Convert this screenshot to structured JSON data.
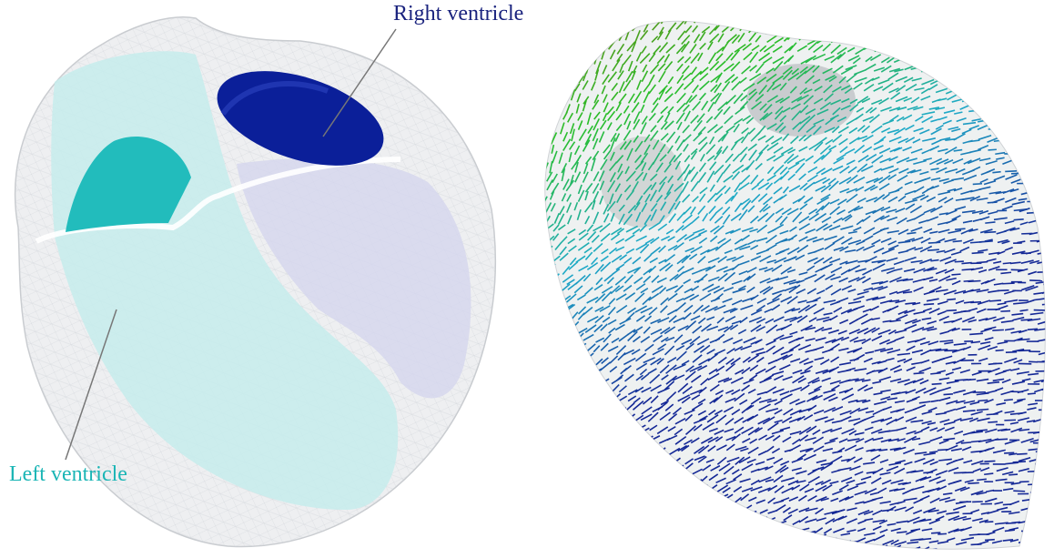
{
  "labels": {
    "right_ventricle": "Right ventricle",
    "left_ventricle": "Left ventricle"
  }
}
